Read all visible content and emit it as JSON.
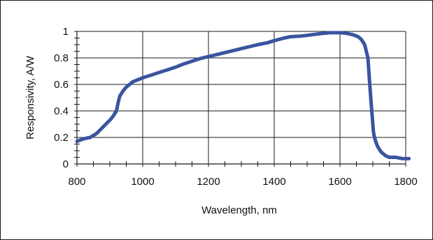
{
  "chart_data": {
    "type": "line",
    "title": "",
    "xlabel": "Wavelength, nm",
    "ylabel": "Responsivity, A/W",
    "xlim": [
      800,
      1800
    ],
    "ylim": [
      0,
      1
    ],
    "x_ticks": [
      800,
      1000,
      1200,
      1400,
      1600,
      1800
    ],
    "y_ticks": [
      0,
      0.2,
      0.4,
      0.6,
      0.8,
      1
    ],
    "x_tick_labels": [
      "800",
      "1000",
      "1200",
      "1400",
      "1600",
      "1800"
    ],
    "y_tick_labels": [
      "0",
      "0.2",
      "0.4",
      "0.6",
      "0.8",
      "1"
    ],
    "grid": true,
    "legend": "none",
    "series": [
      {
        "color": "#3a54a0",
        "x": [
          800,
          820,
          840,
          860,
          880,
          900,
          910,
          920,
          925,
          930,
          940,
          950,
          960,
          970,
          980,
          1000,
          1025,
          1050,
          1075,
          1100,
          1125,
          1150,
          1175,
          1200,
          1250,
          1300,
          1350,
          1380,
          1400,
          1430,
          1450,
          1480,
          1500,
          1530,
          1550,
          1570,
          1600,
          1620,
          1640,
          1655,
          1665,
          1675,
          1685,
          1690,
          1695,
          1700,
          1702,
          1705,
          1710,
          1715,
          1720,
          1725,
          1730,
          1740,
          1750,
          1760,
          1770,
          1780,
          1790,
          1800,
          1810
        ],
        "y": [
          0.17,
          0.19,
          0.2,
          0.23,
          0.28,
          0.33,
          0.36,
          0.4,
          0.46,
          0.51,
          0.55,
          0.58,
          0.6,
          0.62,
          0.63,
          0.65,
          0.67,
          0.69,
          0.71,
          0.73,
          0.755,
          0.775,
          0.795,
          0.81,
          0.84,
          0.87,
          0.9,
          0.915,
          0.93,
          0.95,
          0.96,
          0.965,
          0.97,
          0.98,
          0.985,
          0.99,
          0.99,
          0.985,
          0.975,
          0.96,
          0.94,
          0.9,
          0.8,
          0.62,
          0.45,
          0.3,
          0.24,
          0.2,
          0.16,
          0.13,
          0.11,
          0.09,
          0.08,
          0.06,
          0.05,
          0.05,
          0.05,
          0.045,
          0.04,
          0.04,
          0.04
        ]
      }
    ]
  }
}
